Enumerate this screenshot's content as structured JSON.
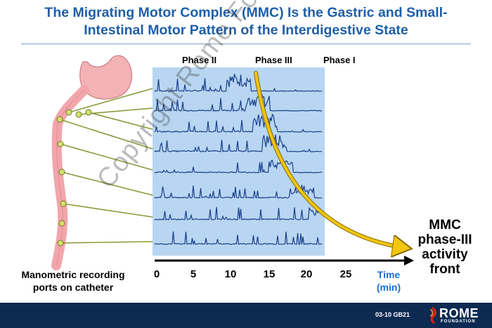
{
  "title": {
    "line1": "The Migrating Motor Complex (MMC) Is the Gastric and Small-",
    "line2": "Intestinal Motor Pattern of the Interdigestive State"
  },
  "phases": [
    "Phase II",
    "Phase III",
    "Phase I"
  ],
  "axis": {
    "ticks": [
      "0",
      "5",
      "10",
      "15",
      "20",
      "25"
    ],
    "time_label": "Time",
    "unit_label": "(min)"
  },
  "ports_label": {
    "line1": "Manometric recording",
    "line2": "ports on catheter"
  },
  "front_label": {
    "line1": "MMC",
    "line2": "phase-III",
    "line3": "activity",
    "line4": "front"
  },
  "watermark": "Copyright Rome Foundation",
  "footer": {
    "code": "03-10  GB21",
    "logo_name": "ROME",
    "logo_sub": "FOUNDATION"
  },
  "colors": {
    "title": "#1f5fa8",
    "panel": "#b8d6f1",
    "trace": "#1a3f8c",
    "arrow": "#f2c511",
    "time_label": "#1f6fd0",
    "footer": "#0d2a52"
  }
}
